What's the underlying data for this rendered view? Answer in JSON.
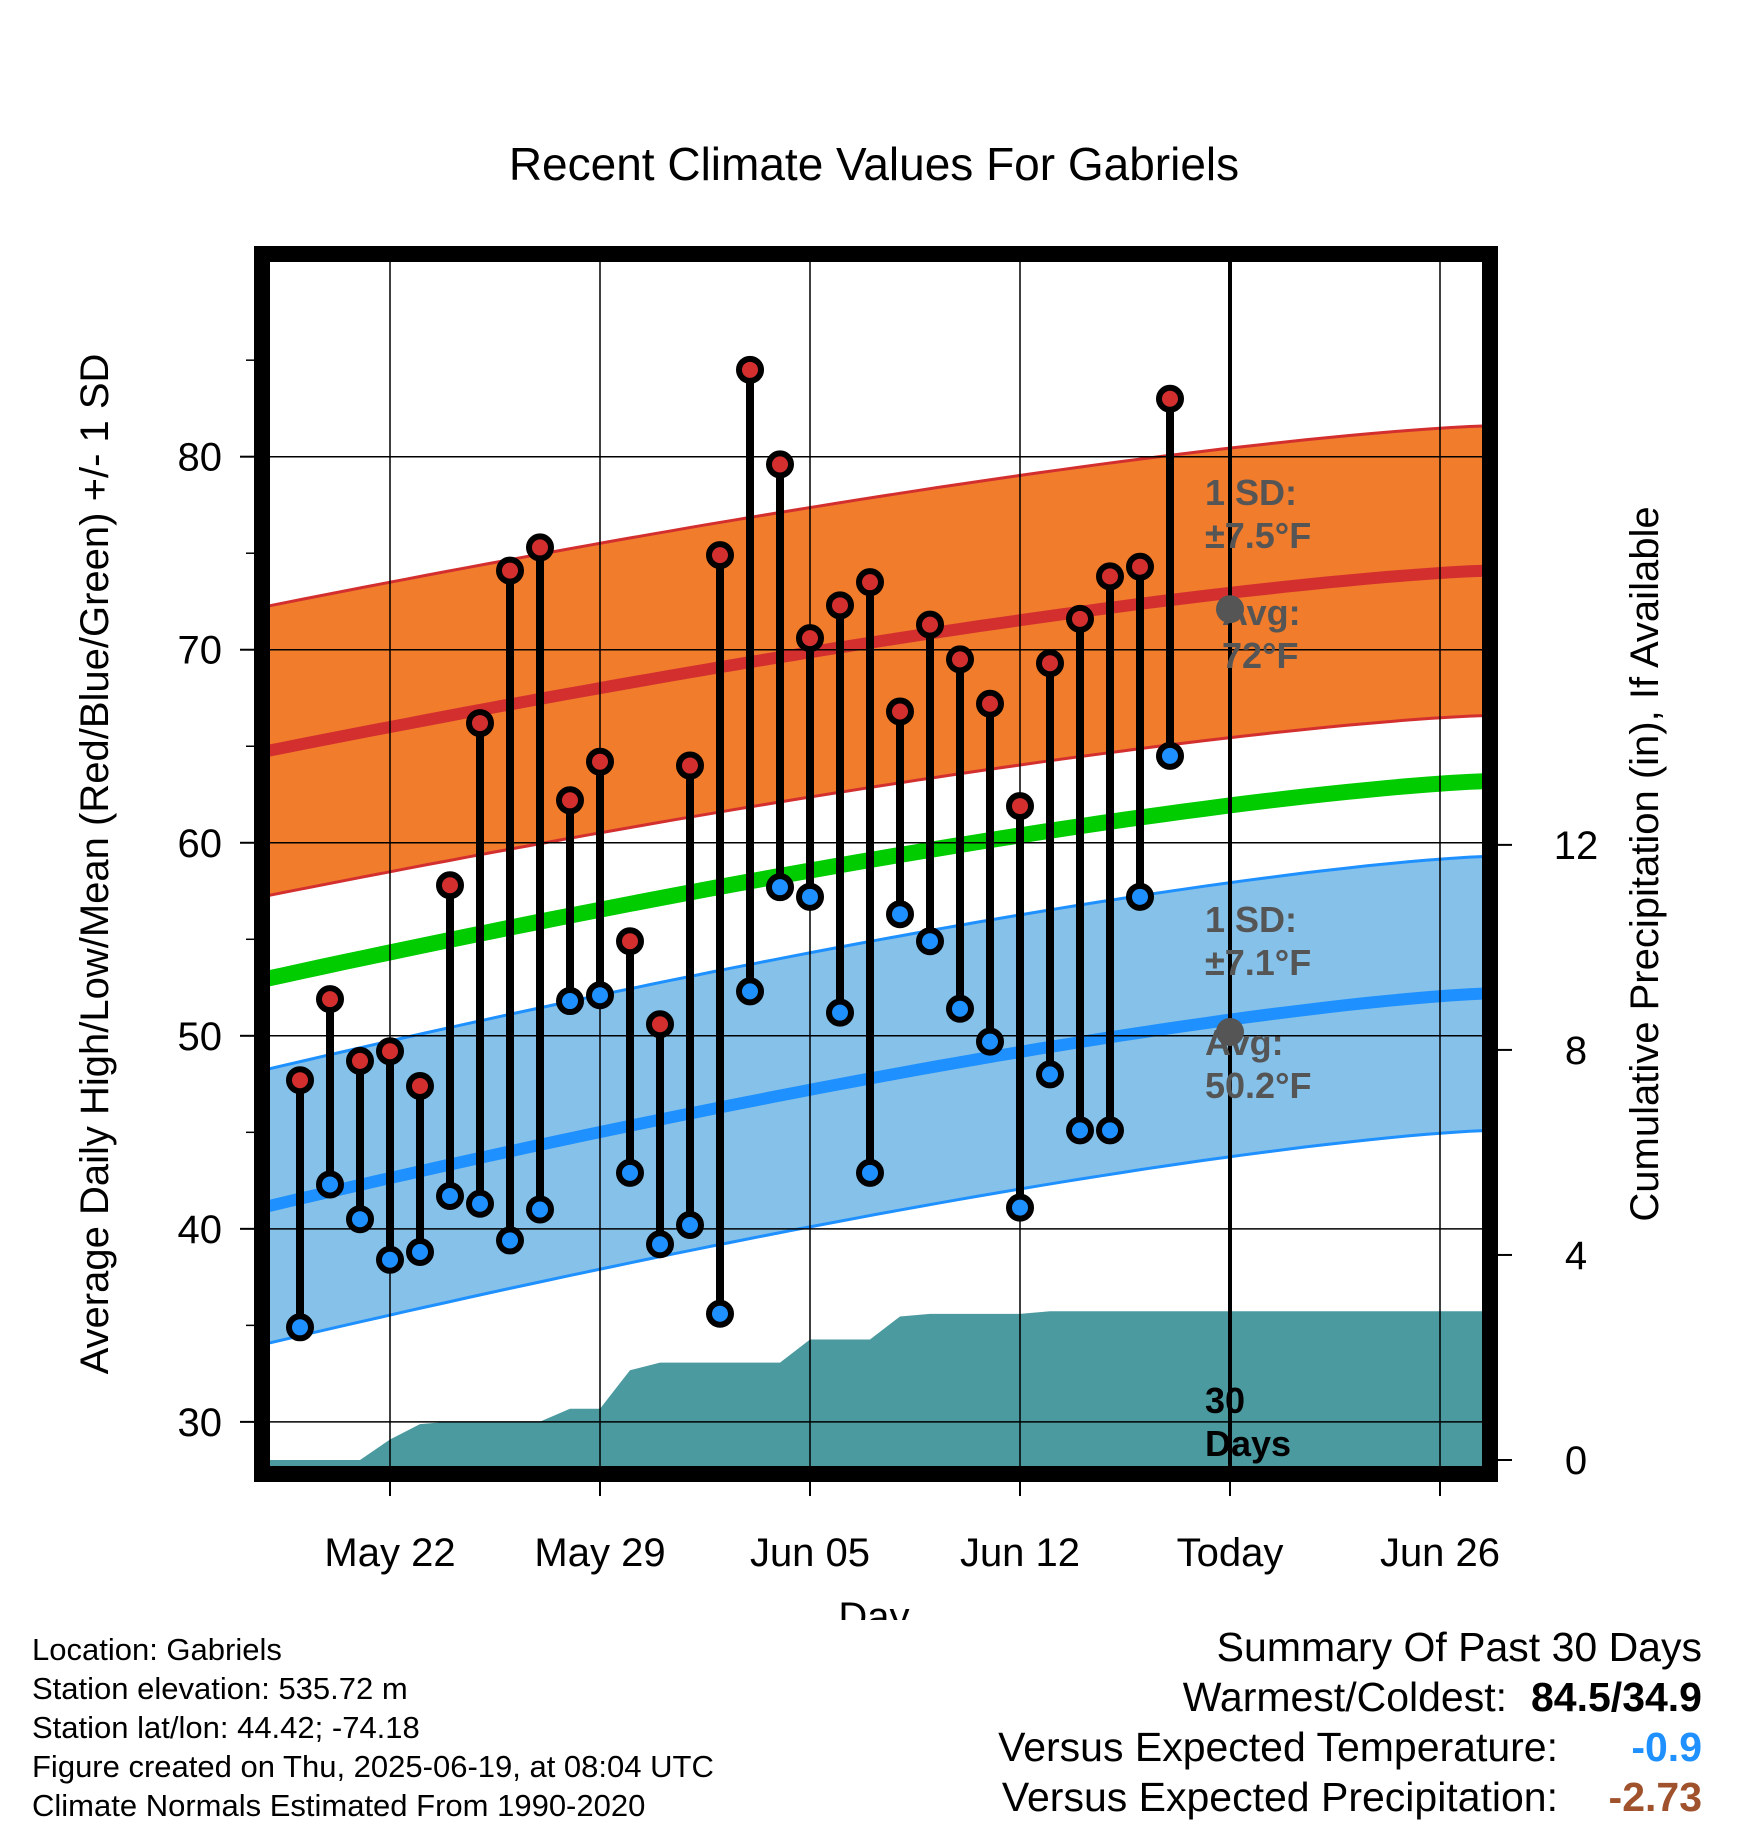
{
  "chart_data": {
    "type": "line",
    "title": "Recent Climate Values For Gabriels",
    "xlabel": "Day",
    "ylabel": "Average Daily High/Low/Mean (Red/Blue/Green) +/- 1 SD",
    "y2label": "Cumulative Precipitation (in), If Available",
    "x_tick_labels": [
      "May 22",
      "May 29",
      "Jun 05",
      "Jun 12",
      "Today",
      "Jun 26"
    ],
    "y_ticks": [
      "30",
      "40",
      "50",
      "60",
      "70",
      "80"
    ],
    "y2_ticks": [
      "0",
      "4",
      "8",
      "12"
    ],
    "ylim": [
      27.3,
      90.5
    ],
    "y2lim": [
      0,
      23.8
    ],
    "grid": true,
    "x_day_range": [
      "2025-05-18",
      "2025-06-28"
    ],
    "today": "2025-06-19",
    "daily_highs": [
      {
        "date": "2025-05-19",
        "value": 47.7
      },
      {
        "date": "2025-05-20",
        "value": 51.9
      },
      {
        "date": "2025-05-21",
        "value": 48.7
      },
      {
        "date": "2025-05-22",
        "value": 49.2
      },
      {
        "date": "2025-05-23",
        "value": 47.4
      },
      {
        "date": "2025-05-24",
        "value": 57.8
      },
      {
        "date": "2025-05-25",
        "value": 66.2
      },
      {
        "date": "2025-05-26",
        "value": 74.1
      },
      {
        "date": "2025-05-27",
        "value": 75.3
      },
      {
        "date": "2025-05-28",
        "value": 62.2
      },
      {
        "date": "2025-05-29",
        "value": 64.2
      },
      {
        "date": "2025-05-30",
        "value": 54.9
      },
      {
        "date": "2025-05-31",
        "value": 50.6
      },
      {
        "date": "2025-06-01",
        "value": 64.0
      },
      {
        "date": "2025-06-02",
        "value": 74.9
      },
      {
        "date": "2025-06-03",
        "value": 84.5
      },
      {
        "date": "2025-06-04",
        "value": 79.6
      },
      {
        "date": "2025-06-05",
        "value": 70.6
      },
      {
        "date": "2025-06-06",
        "value": 72.3
      },
      {
        "date": "2025-06-07",
        "value": 73.5
      },
      {
        "date": "2025-06-08",
        "value": 66.8
      },
      {
        "date": "2025-06-09",
        "value": 71.3
      },
      {
        "date": "2025-06-10",
        "value": 69.5
      },
      {
        "date": "2025-06-11",
        "value": 67.2
      },
      {
        "date": "2025-06-12",
        "value": 61.9
      },
      {
        "date": "2025-06-13",
        "value": 69.3
      },
      {
        "date": "2025-06-14",
        "value": 71.6
      },
      {
        "date": "2025-06-15",
        "value": 73.8
      },
      {
        "date": "2025-06-16",
        "value": 74.3
      },
      {
        "date": "2025-06-17",
        "value": 83.0
      }
    ],
    "daily_lows": [
      {
        "date": "2025-05-19",
        "value": 34.9
      },
      {
        "date": "2025-05-20",
        "value": 42.3
      },
      {
        "date": "2025-05-21",
        "value": 40.5
      },
      {
        "date": "2025-05-22",
        "value": 38.4
      },
      {
        "date": "2025-05-23",
        "value": 38.8
      },
      {
        "date": "2025-05-24",
        "value": 41.7
      },
      {
        "date": "2025-05-25",
        "value": 41.3
      },
      {
        "date": "2025-05-26",
        "value": 39.4
      },
      {
        "date": "2025-05-27",
        "value": 41.0
      },
      {
        "date": "2025-05-28",
        "value": 51.8
      },
      {
        "date": "2025-05-29",
        "value": 52.1
      },
      {
        "date": "2025-05-30",
        "value": 42.9
      },
      {
        "date": "2025-05-31",
        "value": 39.2
      },
      {
        "date": "2025-06-01",
        "value": 40.2
      },
      {
        "date": "2025-06-02",
        "value": 35.6
      },
      {
        "date": "2025-06-03",
        "value": 52.3
      },
      {
        "date": "2025-06-04",
        "value": 57.7
      },
      {
        "date": "2025-06-05",
        "value": 57.2
      },
      {
        "date": "2025-06-06",
        "value": 51.2
      },
      {
        "date": "2025-06-07",
        "value": 42.9
      },
      {
        "date": "2025-06-08",
        "value": 56.3
      },
      {
        "date": "2025-06-09",
        "value": 54.9
      },
      {
        "date": "2025-06-10",
        "value": 51.4
      },
      {
        "date": "2025-06-11",
        "value": 49.7
      },
      {
        "date": "2025-06-12",
        "value": 41.1
      },
      {
        "date": "2025-06-13",
        "value": 48.0
      },
      {
        "date": "2025-06-14",
        "value": 45.1
      },
      {
        "date": "2025-06-15",
        "value": 45.1
      },
      {
        "date": "2025-06-16",
        "value": 57.2
      },
      {
        "date": "2025-06-17",
        "value": 64.5
      }
    ],
    "normal_high": {
      "start": 64.7,
      "end": 74.1
    },
    "normal_low": {
      "start": 41.1,
      "end": 52.2
    },
    "normal_mean": {
      "start": 52.9,
      "end": 63.2
    },
    "high_sd_band": {
      "sd": 7.5
    },
    "low_sd_band": {
      "sd": 7.1
    },
    "cumulative_precip": [
      {
        "date": "2025-05-18",
        "value": 0.0
      },
      {
        "date": "2025-05-21",
        "value": 0.0
      },
      {
        "date": "2025-05-22",
        "value": 0.4
      },
      {
        "date": "2025-05-23",
        "value": 0.7
      },
      {
        "date": "2025-05-24",
        "value": 0.75
      },
      {
        "date": "2025-05-27",
        "value": 0.75
      },
      {
        "date": "2025-05-28",
        "value": 1.0
      },
      {
        "date": "2025-05-29",
        "value": 1.0
      },
      {
        "date": "2025-05-30",
        "value": 1.75
      },
      {
        "date": "2025-05-31",
        "value": 1.9
      },
      {
        "date": "2025-06-04",
        "value": 1.9
      },
      {
        "date": "2025-06-05",
        "value": 2.35
      },
      {
        "date": "2025-06-07",
        "value": 2.35
      },
      {
        "date": "2025-06-08",
        "value": 2.8
      },
      {
        "date": "2025-06-09",
        "value": 2.85
      },
      {
        "date": "2025-06-12",
        "value": 2.85
      },
      {
        "date": "2025-06-13",
        "value": 2.9
      },
      {
        "date": "2025-06-28",
        "value": 2.9
      }
    ],
    "annotations": {
      "high_sd_label": "1 SD:",
      "high_sd_value": "±7.5°F",
      "high_avg_label": "Avg:",
      "high_avg_value": "72°F",
      "high_avg": 72.1,
      "low_sd_label": "1 SD:",
      "low_sd_value": "±7.1°F",
      "low_avg_label": "Avg:",
      "low_avg_value": "50.2°F",
      "low_avg": 50.2,
      "days_label_1": "30",
      "days_label_2": "Days"
    },
    "colors": {
      "high": "#d32f2f",
      "high_band": "#f07c2c",
      "low": "#1e90ff",
      "low_band": "#85c1e9",
      "mean": "#00cc00",
      "precip": "#4a9aa0",
      "avg_marker": "#555555"
    }
  },
  "footer": {
    "location": "Location: Gabriels",
    "elevation": "Station elevation: 535.72 m",
    "latlon": "Station lat/lon: 44.42; -74.18",
    "created": "Figure created on Thu, 2025-06-19, at 08:04 UTC",
    "normals": "Climate Normals Estimated From 1990-2020"
  },
  "summary": {
    "title": "Summary Of Past 30 Days",
    "warm_cold_label": "Warmest/Coldest:",
    "warm_cold_value": "84.5/34.9",
    "temp_label": "Versus Expected Temperature:",
    "temp_value": "-0.9",
    "temp_color": "#1e90ff",
    "precip_label": "Versus Expected Precipitation:",
    "precip_value": "-2.73",
    "precip_color": "#a0522d"
  }
}
